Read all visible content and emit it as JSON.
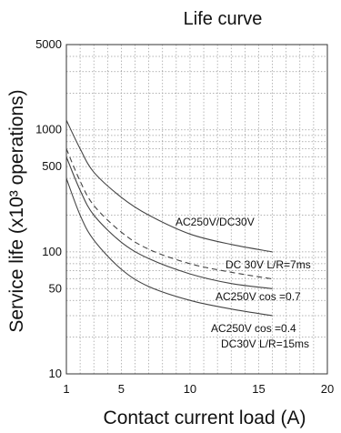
{
  "chart_data": {
    "type": "line",
    "title": "Life curve",
    "xlabel": "Contact current load (A)",
    "ylabel": "Service life (x10³ operations)",
    "xlim": [
      1,
      20
    ],
    "ylim": [
      10,
      5000
    ],
    "yscale": "log",
    "grid": true,
    "x_ticks": [
      1,
      5,
      10,
      15,
      20
    ],
    "y_ticks": [
      10,
      50,
      100,
      500,
      1000,
      5000
    ],
    "series": [
      {
        "name": "AC250V/DC30V",
        "style": "solid",
        "x": [
          1,
          2,
          3,
          5,
          7,
          10,
          13,
          16
        ],
        "y": [
          1200,
          700,
          450,
          280,
          200,
          140,
          115,
          100
        ]
      },
      {
        "name": "DC 30V L/R=7ms",
        "style": "dashed",
        "x": [
          1,
          2,
          3,
          5,
          7,
          10,
          13,
          16
        ],
        "y": [
          700,
          380,
          240,
          145,
          105,
          80,
          68,
          60
        ]
      },
      {
        "name": "AC250V cos =0.7",
        "style": "solid",
        "x": [
          1,
          2,
          3,
          5,
          7,
          10,
          13,
          16
        ],
        "y": [
          600,
          320,
          200,
          120,
          88,
          66,
          55,
          50
        ]
      },
      {
        "name": "AC250V cos =0.4 DC30V L/R=15ms",
        "style": "solid",
        "x": [
          1,
          2,
          3,
          5,
          7,
          10,
          13,
          16
        ],
        "y": [
          400,
          200,
          125,
          72,
          52,
          40,
          34,
          30
        ]
      }
    ],
    "annotations": [
      {
        "id": "a1",
        "text": "AC250V/DC30V"
      },
      {
        "id": "a2",
        "text": "DC 30V L/R=7ms"
      },
      {
        "id": "a3",
        "text": "AC250V cos =0.7"
      },
      {
        "id": "a4",
        "text": "AC250V cos =0.4"
      },
      {
        "id": "a5",
        "text": "DC30V L/R=15ms"
      }
    ]
  }
}
